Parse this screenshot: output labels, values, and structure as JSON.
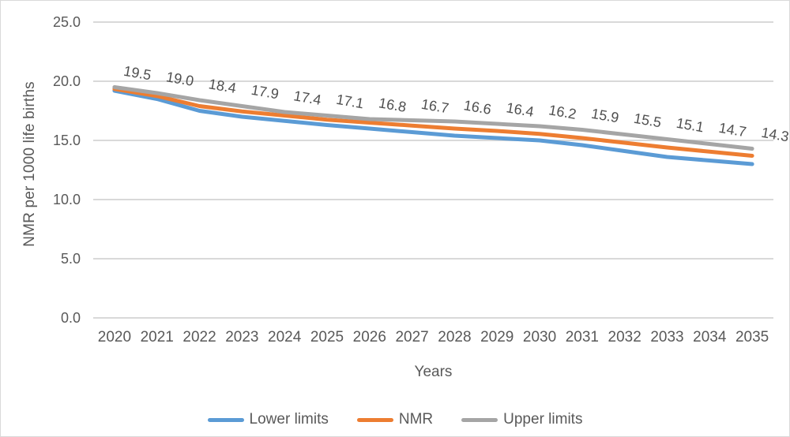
{
  "chart_data": {
    "type": "line",
    "title": "",
    "xlabel": "Years",
    "ylabel": "NMR per 1000 life births",
    "x": [
      2020,
      2021,
      2022,
      2023,
      2024,
      2025,
      2026,
      2027,
      2028,
      2029,
      2030,
      2031,
      2032,
      2033,
      2034,
      2035
    ],
    "ylim": [
      0,
      25
    ],
    "yticks": [
      0,
      5,
      10,
      15,
      20,
      25
    ],
    "ytick_labels": [
      "0.0",
      "5.0",
      "10.0",
      "15.0",
      "20.0",
      "25.0"
    ],
    "grid": true,
    "legend_position": "bottom",
    "series": [
      {
        "name": "Lower limits",
        "color": "#5B9BD5",
        "values": [
          19.2,
          18.5,
          17.5,
          17.0,
          16.65,
          16.3,
          16.0,
          15.7,
          15.4,
          15.2,
          15.0,
          14.6,
          14.1,
          13.6,
          13.3,
          13.0
        ]
      },
      {
        "name": "NMR",
        "color": "#ED7D31",
        "values": [
          19.35,
          18.75,
          17.9,
          17.45,
          17.1,
          16.75,
          16.5,
          16.25,
          16.0,
          15.8,
          15.55,
          15.2,
          14.8,
          14.4,
          14.05,
          13.7
        ]
      },
      {
        "name": "Upper limits",
        "color": "#A5A5A5",
        "values": [
          19.5,
          19.0,
          18.4,
          17.9,
          17.4,
          17.1,
          16.8,
          16.7,
          16.6,
          16.4,
          16.2,
          15.9,
          15.5,
          15.1,
          14.7,
          14.3
        ],
        "data_labels": [
          "19.5",
          "19.0",
          "18.4",
          "17.9",
          "17.4",
          "17.1",
          "16.8",
          "16.7",
          "16.6",
          "16.4",
          "16.2",
          "15.9",
          "15.5",
          "15.1",
          "14.7",
          "14.3"
        ]
      }
    ]
  },
  "colors": {
    "axis_text": "#595959",
    "data_label_text": "#4f4f4f",
    "gridline": "#d9d9d9",
    "border": "#d9d9d9",
    "background": "#ffffff"
  }
}
